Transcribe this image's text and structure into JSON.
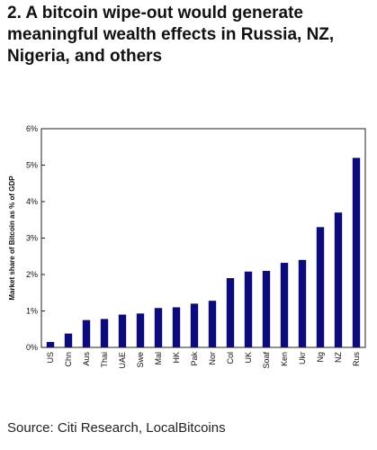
{
  "page": {
    "title": "2. A bitcoin wipe-out would generate meaningful wealth effects in Russia, NZ, Nigeria, and others",
    "source": "Source: Citi Research, LocalBitcoins"
  },
  "chart_data": {
    "type": "bar",
    "ylabel": "Market share of Bitcoin as % of GDP",
    "xlabel": "",
    "ylim": [
      0,
      6
    ],
    "yticks": [
      "0%",
      "1%",
      "2%",
      "3%",
      "4%",
      "5%",
      "6%"
    ],
    "categories": [
      "US",
      "Chn",
      "Aus",
      "Thai",
      "UAE",
      "Swe",
      "Mal",
      "HK",
      "Pak",
      "Nor",
      "Col",
      "UK",
      "Soaf",
      "Ken",
      "Ukr",
      "Ng",
      "NZ",
      "Rus"
    ],
    "values": [
      0.15,
      0.38,
      0.75,
      0.78,
      0.9,
      0.93,
      1.08,
      1.1,
      1.2,
      1.28,
      1.9,
      2.08,
      2.1,
      2.32,
      2.4,
      3.3,
      3.7,
      5.2
    ],
    "bar_color": "#0b0b7a",
    "grid": false
  }
}
